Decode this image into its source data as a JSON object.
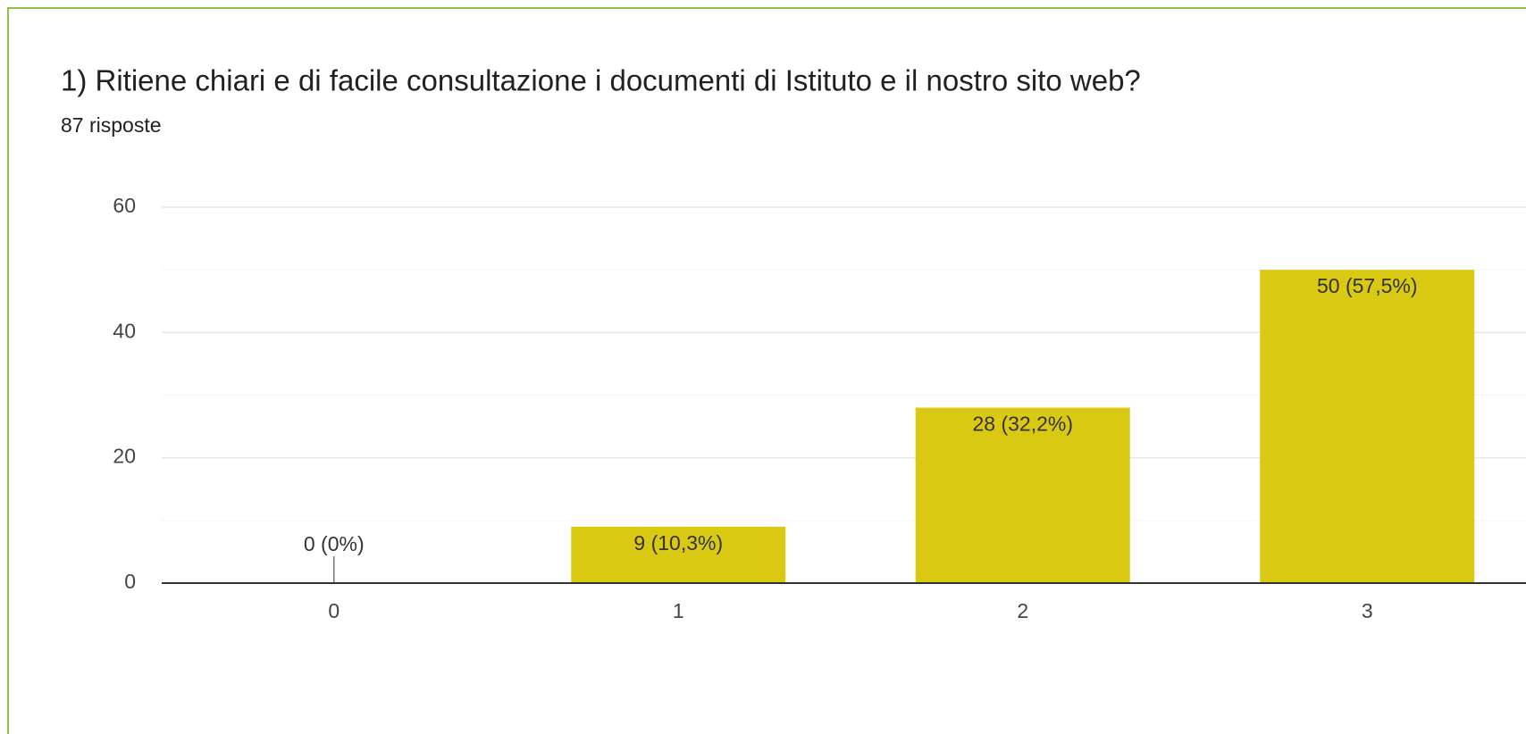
{
  "chart_data": {
    "type": "bar",
    "title": "1) Ritiene chiari e di facile consultazione i documenti di Istituto e il nostro sito web?",
    "subtitle": "87 risposte",
    "categories": [
      "0",
      "1",
      "2",
      "3"
    ],
    "values": [
      0,
      9,
      28,
      50
    ],
    "value_labels": [
      "0 (0%)",
      "9 (10,3%)",
      "28 (32,2%)",
      "50 (57,5%)"
    ],
    "color": "#d9c912",
    "ylim": [
      0,
      60
    ],
    "yticks": [
      0,
      20,
      40,
      60
    ],
    "grid": true,
    "minor_grid": true
  }
}
